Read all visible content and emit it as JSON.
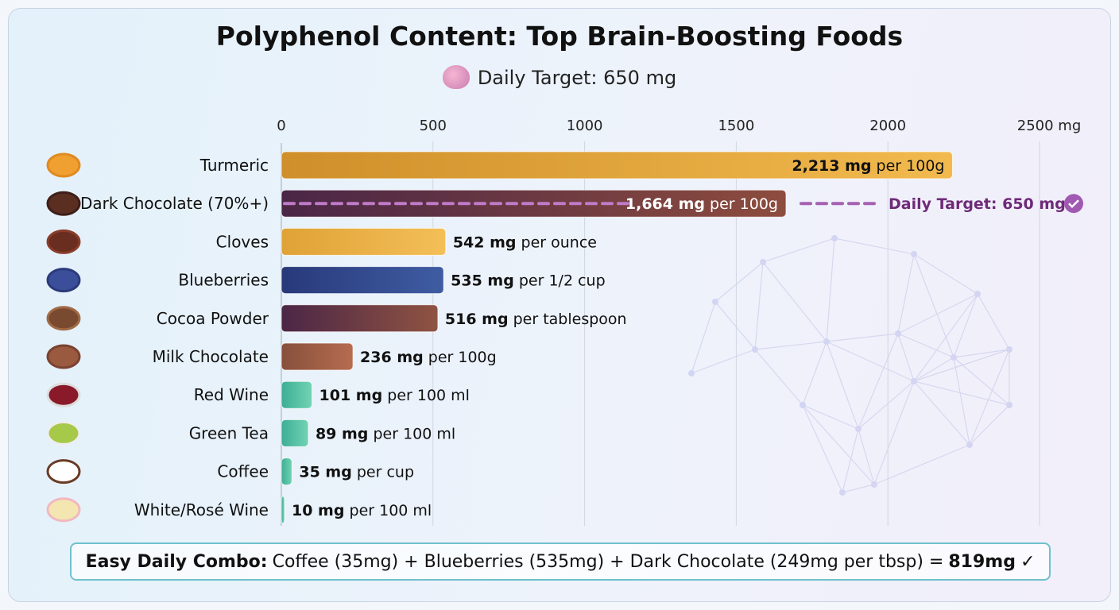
{
  "title": "Polyphenol Content: Top Brain-Boosting Foods",
  "subtitle": "Daily Target: 650 mg",
  "chart_data": {
    "type": "bar",
    "orientation": "horizontal",
    "title": "Polyphenol Content: Top Brain-Boosting Foods",
    "xlim": [
      0,
      2500
    ],
    "x_ticks": [
      "0",
      "500",
      "1000",
      "1500",
      "2000",
      "2500 mg"
    ],
    "grid": true,
    "categories": [
      "Turmeric",
      "Dark Chocolate (70%+)",
      "Cloves",
      "Blueberries",
      "Cocoa Powder",
      "Milk Chocolate",
      "Red Wine",
      "Green Tea",
      "Coffee",
      "White/Rosé Wine"
    ],
    "values": [
      2213,
      1664,
      542,
      535,
      516,
      236,
      101,
      89,
      35,
      10
    ],
    "value_labels": [
      "2,213 mg",
      "1,664 mg",
      "542 mg",
      "535 mg",
      "516 mg",
      "236 mg",
      "101 mg",
      "89 mg",
      "35 mg",
      "10 mg"
    ],
    "units": [
      "per 100g",
      "per 100g",
      "per ounce",
      "per 1/2 cup",
      "per tablespoon",
      "per 100g",
      "per 100 ml",
      "per 100 ml",
      "per cup",
      "per 100 ml"
    ],
    "colors": [
      [
        "#cf8f2a",
        "#f2ba4e"
      ],
      [
        "#4a2646",
        "#8d4c3e"
      ],
      [
        "#dfa236",
        "#f4bf58"
      ],
      [
        "#28397a",
        "#3f5ca2"
      ],
      [
        "#4b2646",
        "#8f5342"
      ],
      [
        "#87503c",
        "#b66c4f"
      ],
      [
        "#3cae95",
        "#72d3b3"
      ],
      [
        "#3cae95",
        "#72d3b3"
      ],
      [
        "#3cae95",
        "#72d3b3"
      ],
      [
        "#3cae95",
        "#72d3b3"
      ]
    ],
    "icons": [
      "turmeric-icon",
      "dark-chocolate-icon",
      "cloves-icon",
      "blueberries-icon",
      "cocoa-powder-icon",
      "milk-chocolate-icon",
      "red-wine-icon",
      "green-tea-icon",
      "coffee-icon",
      "white-rose-wine-icon"
    ],
    "target_line": {
      "label": "Daily Target: 650 mg",
      "value": 650,
      "color": "#9b4fa6"
    }
  },
  "combo": {
    "label": "Easy Daily Combo:",
    "text": "Coffee (35mg) + Blueberries (535mg) + Dark Chocolate (249mg per tbsp) =",
    "total": "819mg",
    "check": "✓"
  }
}
